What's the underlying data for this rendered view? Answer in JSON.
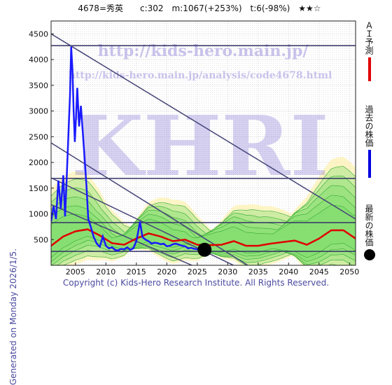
{
  "header": {
    "title": "4678=秀英　　c:302　m:1067(+253%)　t:6(-98%)　★★☆",
    "generated": "Generated on Monday 2026/1/5.",
    "copyright": "Copyright (c) Kids-Hero Research Institute. All Rights Reserved."
  },
  "watermark": {
    "url_main": "http://kids-hero.main.jp/",
    "url_analysis": "http://kids-hero.main.jp/analysis/code4678.html",
    "logo": "KHRI"
  },
  "legend": [
    {
      "label": "ＡＩ予測",
      "color": "#e00000",
      "shape": "line"
    },
    {
      "label": "過去の株価",
      "color": "#0000e0",
      "shape": "line"
    },
    {
      "label": "最新の株価",
      "color": "#000000",
      "shape": "dot"
    }
  ],
  "colors": {
    "price": "#1a1aff",
    "ai": "#e00000",
    "trend": "#444477",
    "horizontal": "#333366",
    "band_green": "#77dd66",
    "band_yellow": "#ffee99",
    "grid": "#cccccc"
  },
  "chart_data": {
    "type": "line",
    "title": "4678=秀英　　c:302　m:1067(+253%)　t:6(-98%)　★★☆",
    "xlabel": "",
    "ylabel": "",
    "xlim": [
      2001,
      2051
    ],
    "ylim": [
      0,
      4750
    ],
    "x_ticks": [
      2005,
      2010,
      2015,
      2020,
      2025,
      2030,
      2035,
      2040,
      2045,
      2050
    ],
    "y_ticks": [
      500,
      1000,
      1500,
      2000,
      2500,
      3000,
      3500,
      4000,
      4500
    ],
    "grid": true,
    "horizontal_levels": [
      4270,
      1690,
      830,
      270
    ],
    "trend_lines": [
      {
        "x": [
          2001,
          2051
        ],
        "y": [
          4500,
          900
        ]
      },
      {
        "x": [
          2001,
          2036
        ],
        "y": [
          2380,
          -200
        ]
      },
      {
        "x": [
          2001,
          2038
        ],
        "y": [
          1700,
          -400
        ]
      },
      {
        "x": [
          2001,
          2030
        ],
        "y": [
          1180,
          -300
        ]
      }
    ],
    "latest_point": {
      "x": 2026.2,
      "y": 302
    },
    "series": [
      {
        "name": "過去の株価",
        "x": [
          2001.0,
          2001.4,
          2001.8,
          2002.2,
          2002.6,
          2003.0,
          2003.3,
          2003.6,
          2003.9,
          2004.1,
          2004.3,
          2004.5,
          2004.7,
          2004.9,
          2005.1,
          2005.3,
          2005.6,
          2005.9,
          2006.2,
          2006.5,
          2006.8,
          2007.1,
          2007.5,
          2008.0,
          2008.5,
          2009.0,
          2009.5,
          2010.0,
          2010.5,
          2011.0,
          2011.5,
          2012.0,
          2012.5,
          2013.0,
          2013.5,
          2014.0,
          2014.5,
          2015.0,
          2015.3,
          2015.6,
          2016.0,
          2016.5,
          2017.0,
          2017.5,
          2018.0,
          2018.5,
          2019.0,
          2019.5,
          2020.0,
          2020.5,
          2021.0,
          2021.5,
          2022.0,
          2022.5,
          2023.0,
          2023.5,
          2024.0,
          2024.5,
          2025.0,
          2025.5,
          2026.2
        ],
        "y": [
          850,
          1150,
          900,
          1650,
          1100,
          1750,
          950,
          1800,
          2700,
          3300,
          4250,
          3800,
          3000,
          2400,
          2900,
          3450,
          2700,
          3100,
          2600,
          2100,
          1550,
          900,
          750,
          550,
          420,
          360,
          560,
          380,
          330,
          350,
          300,
          290,
          320,
          310,
          350,
          300,
          330,
          470,
          650,
          850,
          550,
          500,
          470,
          420,
          440,
          430,
          410,
          420,
          370,
          380,
          410,
          420,
          400,
          380,
          370,
          330,
          340,
          320,
          310,
          300,
          302
        ]
      },
      {
        "name": "ＡＩ予測",
        "x": [
          2001,
          2003,
          2005,
          2007,
          2009,
          2011,
          2013,
          2015,
          2017,
          2019,
          2021,
          2023,
          2025,
          2027,
          2029,
          2031,
          2033,
          2035,
          2037,
          2039,
          2041,
          2043,
          2045,
          2047,
          2049,
          2051
        ],
        "y": [
          380,
          560,
          660,
          700,
          580,
          430,
          400,
          520,
          620,
          560,
          470,
          500,
          400,
          390,
          400,
          470,
          380,
          380,
          420,
          450,
          480,
          400,
          520,
          680,
          680,
          520
        ]
      }
    ]
  }
}
